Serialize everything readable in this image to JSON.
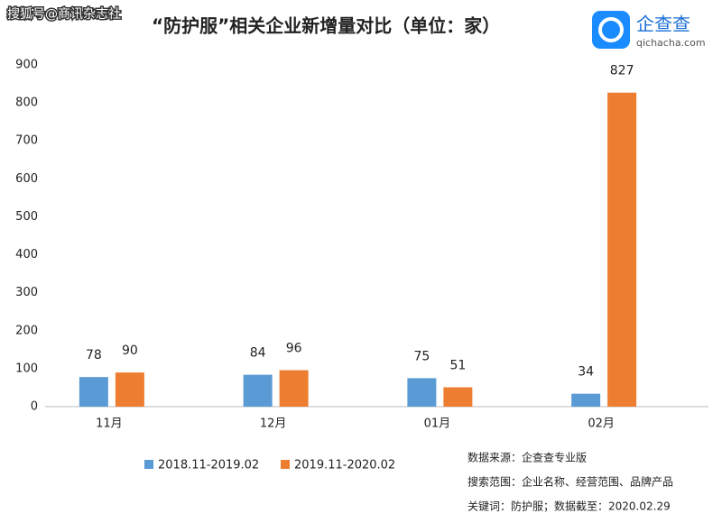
{
  "watermark": "搜狐号@商讯杂志社",
  "logo": {
    "name": "企查查",
    "site": "qichacha.com"
  },
  "chart_data": {
    "type": "bar",
    "title": "“防护服”相关企业新增量对比（单位：家）",
    "categories": [
      "11月",
      "12月",
      "01月",
      "02月"
    ],
    "series": [
      {
        "name": "2018.11-2019.02",
        "color": "#5b9bd5",
        "values": [
          78,
          84,
          75,
          34
        ]
      },
      {
        "name": "2019.11-2020.02",
        "color": "#ed7d31",
        "values": [
          90,
          96,
          51,
          827
        ]
      }
    ],
    "ylim": [
      0,
      900
    ],
    "yticks": [
      0,
      100,
      200,
      300,
      400,
      500,
      600,
      700,
      800,
      900
    ],
    "grid": false,
    "notes": [
      "数据来源：企查查专业版",
      "搜索范围：企业名称、经营范围、品牌产品",
      "关键词：防护服；数据截至：2020.02.29"
    ]
  }
}
